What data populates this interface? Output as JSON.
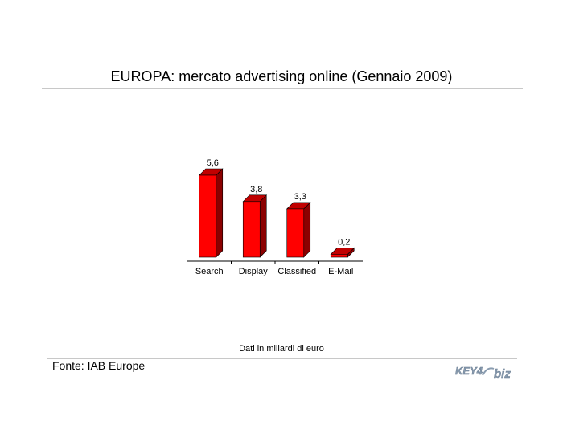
{
  "title": "EUROPA: mercato advertising online (Gennaio 2009)",
  "note": "Dati in miliardi di euro",
  "source": "Fonte: IAB Europe",
  "logo": {
    "text_left": "KEY4",
    "text_right": "biz",
    "color": "#8a9cb0"
  },
  "colors": {
    "bar_front": "#ff0000",
    "bar_side": "#8b0000",
    "bar_top": "#c00000"
  },
  "chart_data": {
    "type": "bar",
    "categories": [
      "Search",
      "Display",
      "Classified",
      "E-Mail"
    ],
    "values": [
      5.6,
      3.8,
      3.3,
      0.2
    ],
    "value_labels": [
      "5,6",
      "3,8",
      "3,3",
      "0,2"
    ],
    "title": "",
    "xlabel": "",
    "ylabel": "",
    "ylim": [
      0,
      5.6
    ],
    "style": "3d-bar",
    "grid": false
  }
}
